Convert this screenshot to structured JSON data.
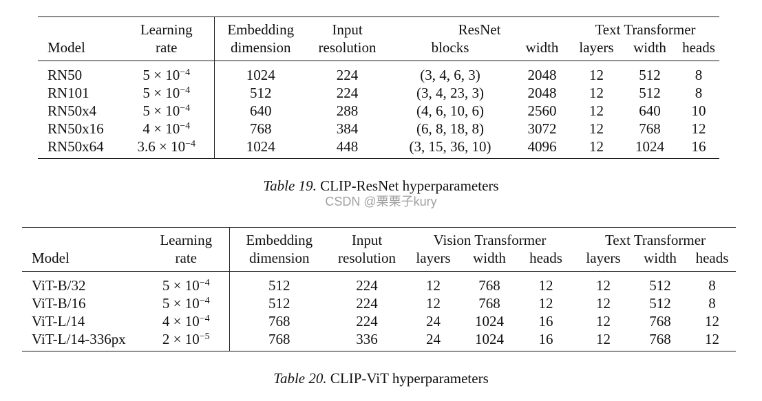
{
  "table19": {
    "headers": {
      "model": "Model",
      "lr_top": "Learning",
      "lr_bottom": "rate",
      "emb_top": "Embedding",
      "emb_bottom": "dimension",
      "res_top": "Input",
      "res_bottom": "resolution",
      "resnet_group": "ResNet",
      "blocks": "blocks",
      "width": "width",
      "text_group": "Text Transformer",
      "t_layers": "layers",
      "t_width": "width",
      "t_heads": "heads"
    },
    "rows": [
      {
        "model": "RN50",
        "lr_base": "5 × 10",
        "lr_exp": "−4",
        "emb": "1024",
        "res": "224",
        "blocks": "(3, 4, 6, 3)",
        "width": "2048",
        "t_layers": "12",
        "t_width": "512",
        "t_heads": "8"
      },
      {
        "model": "RN101",
        "lr_base": "5 × 10",
        "lr_exp": "−4",
        "emb": "512",
        "res": "224",
        "blocks": "(3, 4, 23, 3)",
        "width": "2048",
        "t_layers": "12",
        "t_width": "512",
        "t_heads": "8"
      },
      {
        "model": "RN50x4",
        "lr_base": "5 × 10",
        "lr_exp": "−4",
        "emb": "640",
        "res": "288",
        "blocks": "(4, 6, 10, 6)",
        "width": "2560",
        "t_layers": "12",
        "t_width": "640",
        "t_heads": "10"
      },
      {
        "model": "RN50x16",
        "lr_base": "4 × 10",
        "lr_exp": "−4",
        "emb": "768",
        "res": "384",
        "blocks": "(6, 8, 18, 8)",
        "width": "3072",
        "t_layers": "12",
        "t_width": "768",
        "t_heads": "12"
      },
      {
        "model": "RN50x64",
        "lr_base": "3.6 × 10",
        "lr_exp": "−4",
        "emb": "1024",
        "res": "448",
        "blocks": "(3, 15, 36, 10)",
        "width": "4096",
        "t_layers": "12",
        "t_width": "1024",
        "t_heads": "16"
      }
    ],
    "caption_label": "Table 19.",
    "caption_text": " CLIP-ResNet hyperparameters"
  },
  "watermark": "CSDN @栗栗子kury",
  "table20": {
    "headers": {
      "model": "Model",
      "lr_top": "Learning",
      "lr_bottom": "rate",
      "emb_top": "Embedding",
      "emb_bottom": "dimension",
      "res_top": "Input",
      "res_bottom": "resolution",
      "vision_group": "Vision Transformer",
      "v_layers": "layers",
      "v_width": "width",
      "v_heads": "heads",
      "text_group": "Text Transformer",
      "t_layers": "layers",
      "t_width": "width",
      "t_heads": "heads"
    },
    "rows": [
      {
        "model": "ViT-B/32",
        "lr_base": "5 × 10",
        "lr_exp": "−4",
        "emb": "512",
        "res": "224",
        "v_layers": "12",
        "v_width": "768",
        "v_heads": "12",
        "t_layers": "12",
        "t_width": "512",
        "t_heads": "8"
      },
      {
        "model": "ViT-B/16",
        "lr_base": "5 × 10",
        "lr_exp": "−4",
        "emb": "512",
        "res": "224",
        "v_layers": "12",
        "v_width": "768",
        "v_heads": "12",
        "t_layers": "12",
        "t_width": "512",
        "t_heads": "8"
      },
      {
        "model": "ViT-L/14",
        "lr_base": "4 × 10",
        "lr_exp": "−4",
        "emb": "768",
        "res": "224",
        "v_layers": "24",
        "v_width": "1024",
        "v_heads": "16",
        "t_layers": "12",
        "t_width": "768",
        "t_heads": "12"
      },
      {
        "model": "ViT-L/14-336px",
        "lr_base": "2 × 10",
        "lr_exp": "−5",
        "emb": "768",
        "res": "336",
        "v_layers": "24",
        "v_width": "1024",
        "v_heads": "16",
        "t_layers": "12",
        "t_width": "768",
        "t_heads": "12"
      }
    ],
    "caption_label": "Table 20.",
    "caption_text": " CLIP-ViT hyperparameters"
  }
}
